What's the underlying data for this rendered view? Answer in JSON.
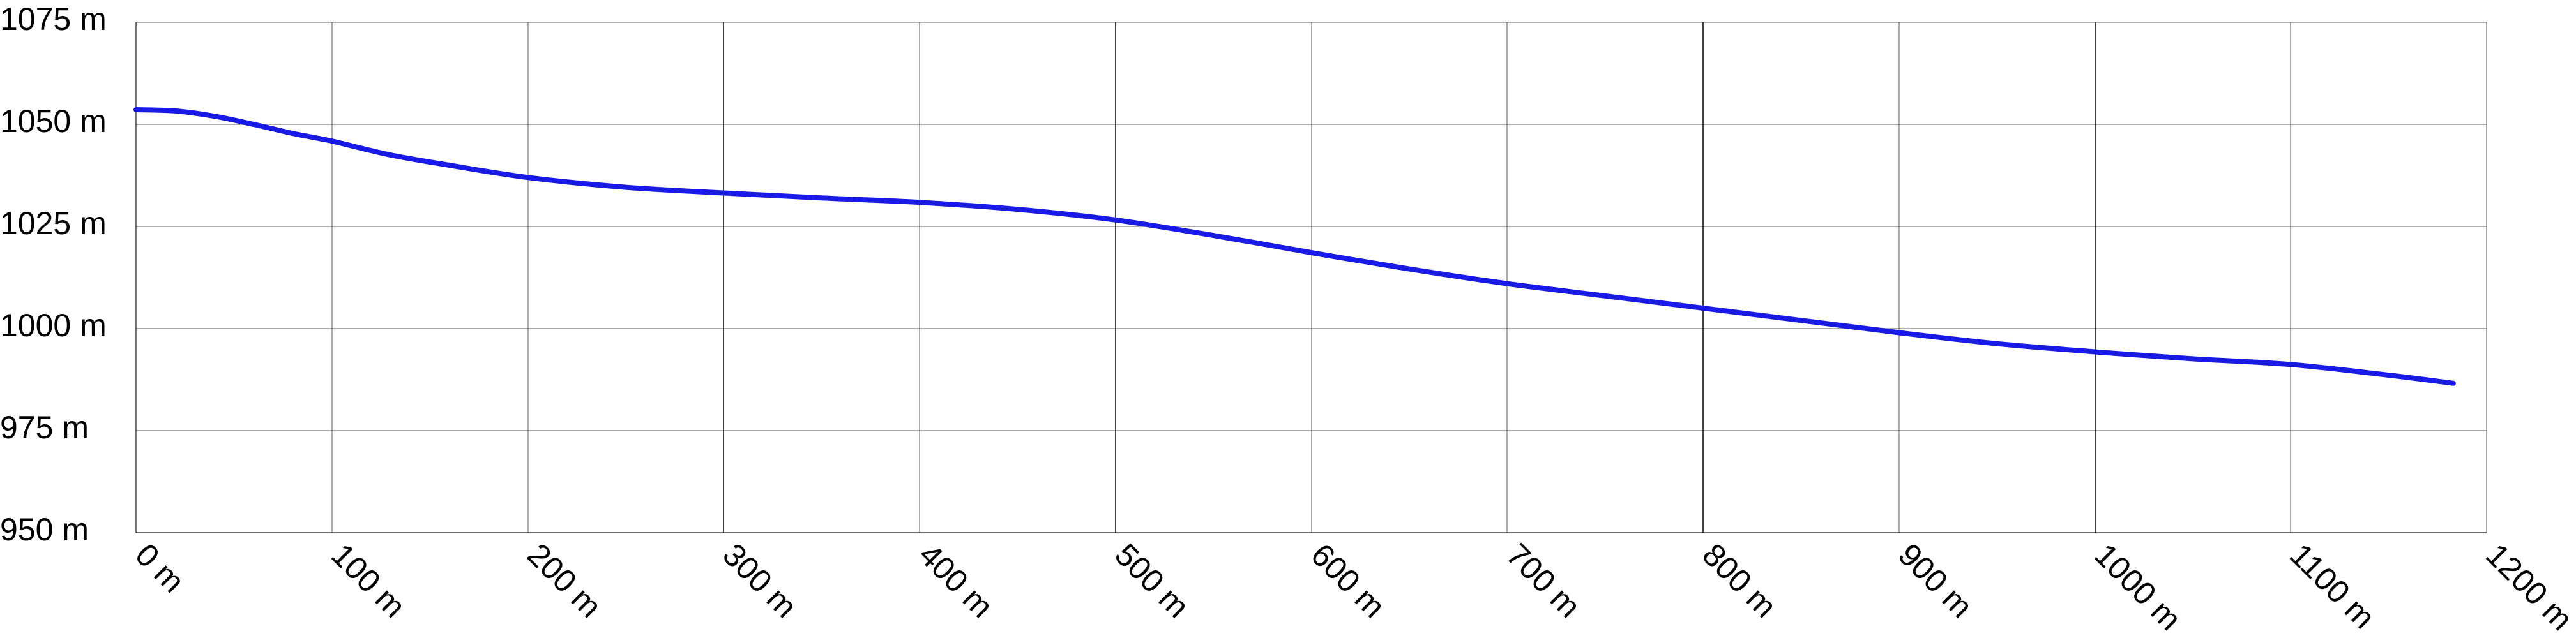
{
  "chart_data": {
    "type": "line",
    "title": "",
    "xlabel": "",
    "ylabel": "",
    "x_unit": "m",
    "y_unit": "m",
    "xlim": [
      0,
      1200
    ],
    "ylim": [
      950,
      1075
    ],
    "grid": true,
    "legend": "none",
    "x_ticks": [
      0,
      100,
      200,
      300,
      400,
      500,
      600,
      700,
      800,
      900,
      1000,
      1100,
      1200
    ],
    "x_tick_labels": [
      "0 m",
      "100 m",
      "200 m",
      "300 m",
      "400 m",
      "500 m",
      "600 m",
      "700 m",
      "800 m",
      "900 m",
      "1000 m",
      "1100 m",
      "1200 m"
    ],
    "y_ticks": [
      950,
      975,
      1000,
      1025,
      1050,
      1075
    ],
    "y_tick_labels": [
      "950 m",
      "975 m",
      "1000 m",
      "1025 m",
      "1050 m",
      "1075 m"
    ],
    "colors": {
      "series": "#1a1ae6"
    },
    "series": [
      {
        "x": [
          0,
          20,
          40,
          60,
          80,
          100,
          130,
          160,
          200,
          250,
          300,
          350,
          400,
          450,
          500,
          550,
          600,
          650,
          700,
          750,
          800,
          850,
          900,
          950,
          1000,
          1050,
          1100,
          1150,
          1183
        ],
        "y": [
          1053.6,
          1053.3,
          1052.0,
          1050.0,
          1047.8,
          1045.9,
          1042.5,
          1040.0,
          1037.0,
          1034.6,
          1033.2,
          1032.0,
          1030.9,
          1029.2,
          1026.6,
          1022.8,
          1018.6,
          1014.6,
          1011.0,
          1008.0,
          1005.0,
          1002.0,
          999.0,
          996.3,
          994.3,
          992.6,
          991.2,
          988.6,
          986.6
        ]
      }
    ]
  }
}
